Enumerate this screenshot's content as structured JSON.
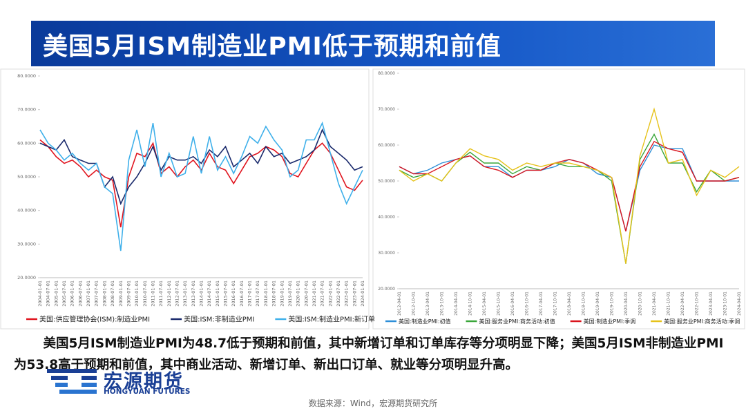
{
  "header": {
    "title": "美国5月ISM制造业PMI低于预期和前值"
  },
  "chart_data": [
    {
      "type": "line",
      "categories": [
        "2004-01-01",
        "2004-07-01",
        "2005-01-01",
        "2005-07-01",
        "2006-01-01",
        "2006-07-01",
        "2007-01-01",
        "2007-07-01",
        "2008-01-01",
        "2008-07-01",
        "2009-01-01",
        "2009-07-01",
        "2010-01-01",
        "2010-07-01",
        "2011-01-01",
        "2011-07-01",
        "2012-01-01",
        "2012-07-01",
        "2013-01-01",
        "2013-07-01",
        "2014-01-01",
        "2014-07-01",
        "2015-01-01",
        "2015-07-01",
        "2016-01-01",
        "2016-07-01",
        "2017-01-01",
        "2017-07-01",
        "2018-01-01",
        "2018-07-01",
        "2019-01-01",
        "2019-07-01",
        "2020-01-01",
        "2020-07-01",
        "2021-01-01",
        "2021-07-01",
        "2022-01-01",
        "2022-07-01",
        "2023-01-01",
        "2023-07-01",
        "2024-01-01"
      ],
      "series": [
        {
          "name": "美国:供应管理协会(ISM):制造业PMI",
          "color": "#e0141e",
          "values": [
            61,
            59,
            56,
            54,
            55,
            53,
            50,
            52,
            50,
            49,
            35,
            50,
            57,
            56,
            60,
            51,
            53,
            50,
            53,
            55,
            52,
            57,
            53,
            52,
            48,
            52,
            56,
            57,
            59,
            58,
            56,
            51,
            50,
            54,
            58,
            60,
            57,
            52,
            47,
            46,
            49
          ]
        },
        {
          "name": "美国:ISM:非制造业PMI",
          "color": "#1a2a6c",
          "values": [
            60,
            59,
            58,
            61,
            56,
            55,
            54,
            54,
            47,
            50,
            42,
            47,
            50,
            54,
            59,
            52,
            56,
            55,
            55,
            56,
            54,
            58,
            56,
            59,
            53,
            55,
            57,
            54,
            59,
            56,
            57,
            54,
            55,
            56,
            58,
            64,
            59,
            57,
            55,
            52,
            53
          ]
        },
        {
          "name": "美国:ISM:制造业PMI:新订单",
          "color": "#3fb0ea",
          "values": [
            64,
            60,
            58,
            55,
            57,
            54,
            52,
            54,
            47,
            45,
            28,
            55,
            64,
            53,
            66,
            50,
            57,
            50,
            51,
            62,
            51,
            62,
            52,
            56,
            51,
            56,
            62,
            60,
            65,
            61,
            58,
            50,
            52,
            61,
            61,
            66,
            57,
            48,
            42,
            47,
            52
          ]
        }
      ],
      "ylim": [
        20,
        80
      ],
      "yticks": [
        {
          "value": 20,
          "label": "20.0000"
        },
        {
          "value": 30,
          "label": "30.0000"
        },
        {
          "value": 40,
          "label": "40.0000"
        },
        {
          "value": 50,
          "label": "50.0000"
        },
        {
          "value": 60,
          "label": "60.0000"
        },
        {
          "value": 70,
          "label": "70.0000"
        },
        {
          "value": 80,
          "label": "80.0000"
        }
      ]
    },
    {
      "type": "line",
      "categories": [
        "2012-04-01",
        "2012-10-01",
        "2013-04-01",
        "2013-10-01",
        "2014-04-01",
        "2014-10-01",
        "2015-04-01",
        "2015-10-01",
        "2016-04-01",
        "2016-10-01",
        "2017-04-01",
        "2017-10-01",
        "2018-04-01",
        "2018-10-01",
        "2019-04-01",
        "2019-10-01",
        "2020-04-01",
        "2020-10-01",
        "2021-04-01",
        "2021-10-01",
        "2022-04-01",
        "2022-10-01",
        "2023-04-01",
        "2023-10-01",
        "2024-04-01"
      ],
      "series": [
        {
          "name": "美国:制造业PMI:初值",
          "color": "#2e8fd8",
          "values": [
            54,
            52,
            53,
            55,
            56,
            57,
            54,
            54,
            51,
            53,
            53,
            54,
            56,
            55,
            52,
            51,
            36,
            53,
            60,
            59,
            59,
            50,
            50,
            50,
            50
          ]
        },
        {
          "name": "美国:服务业PMI:商务活动:初值",
          "color": "#3aa63a",
          "values": [
            53,
            51,
            52,
            50,
            55,
            58,
            55,
            55,
            52,
            54,
            53,
            55,
            54,
            54,
            53,
            50,
            27,
            56,
            63,
            55,
            55,
            47,
            53,
            50,
            51
          ]
        },
        {
          "name": "美国:制造业PMI:季调",
          "color": "#d9141e",
          "values": [
            54,
            52,
            52,
            54,
            56,
            57,
            54,
            53,
            51,
            53,
            53,
            55,
            56,
            55,
            53,
            51,
            36,
            54,
            61,
            59,
            58,
            50,
            50,
            50,
            51
          ]
        },
        {
          "name": "美国:服务业PMI:商务活动:季调",
          "color": "#e6c21a",
          "values": [
            53,
            50,
            52,
            50,
            55,
            59,
            57,
            56,
            53,
            55,
            54,
            55,
            55,
            54,
            53,
            51,
            27,
            57,
            70,
            55,
            56,
            46,
            53,
            51,
            54
          ]
        }
      ],
      "ylim": [
        20,
        80
      ],
      "yticks": [
        {
          "value": 20,
          "label": "20.0000"
        },
        {
          "value": 30,
          "label": "30.0000"
        },
        {
          "value": 40,
          "label": "40.0000"
        },
        {
          "value": 50,
          "label": "50.0000"
        },
        {
          "value": 60,
          "label": "60.0000"
        },
        {
          "value": 70,
          "label": "70.0000"
        },
        {
          "value": 80,
          "label": "80.0000"
        }
      ]
    }
  ],
  "body": {
    "paragraph": "美国5月ISM制造业PMI为48.7低于预期和前值，其中新增订单和订单库存等分项明显下降；美国5月ISM非制造业PMI为53.8高于预期和前值，其中商业活动、新增订单、新出口订单、就业等分项明显升高。"
  },
  "logo": {
    "name": "宏源期货",
    "subtitle": "HONGYUAN FUTURES"
  },
  "footer": {
    "source": "数据来源：Wind，宏源期货研究所"
  }
}
